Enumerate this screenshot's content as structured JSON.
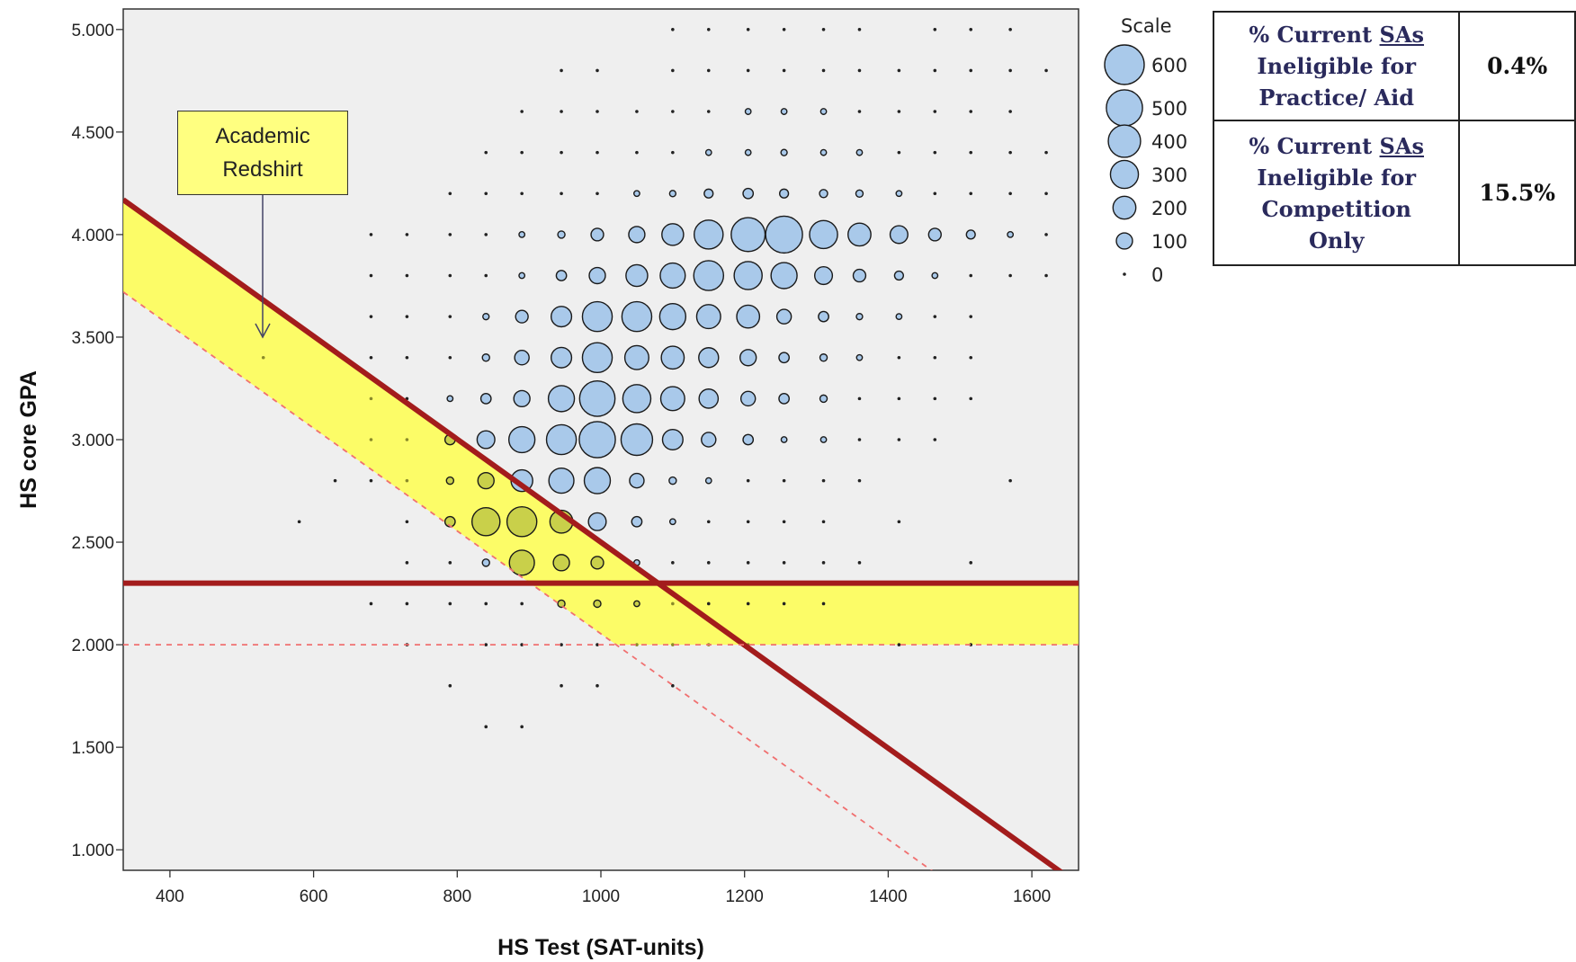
{
  "chart_data": {
    "type": "scatter",
    "subtype": "bubble",
    "title": "",
    "xlabel": "HS Test (SAT-units)",
    "ylabel": "HS core GPA",
    "xlim": [
      335,
      1665
    ],
    "ylim": [
      0.9,
      5.1
    ],
    "x_ticks": [
      "400",
      "600",
      "800",
      "1000",
      "1200",
      "1400",
      "1600"
    ],
    "y_ticks": [
      "1.000",
      "1.500",
      "2.000",
      "2.500",
      "3.000",
      "3.500",
      "4.000",
      "4.500",
      "5.000"
    ],
    "grid": false,
    "bubble_color": "#a9c9ea",
    "highlight_band_color": "#ffff40",
    "cut_line_color": "#a31c1c",
    "dashed_line_color": "#f07070",
    "legend": {
      "title": "Scale",
      "placement": "right",
      "labels": [
        "600",
        "500",
        "400",
        "300",
        "200",
        "100",
        "0"
      ],
      "values": [
        600,
        500,
        400,
        300,
        200,
        100,
        0
      ]
    },
    "x_bins": [
      580,
      630,
      680,
      730,
      790,
      840,
      890,
      945,
      995,
      1050,
      1100,
      1150,
      1205,
      1255,
      1310,
      1360,
      1415,
      1465,
      1515,
      1570,
      1620
    ],
    "rows": [
      {
        "gpa": 5.0,
        "sizes": [
          -1,
          -1,
          -1,
          -1,
          -1,
          -1,
          -1,
          -1,
          -1,
          -1,
          3,
          3,
          3,
          3,
          3,
          3,
          -1,
          3,
          3,
          3,
          -1
        ]
      },
      {
        "gpa": 4.8,
        "sizes": [
          -1,
          -1,
          -1,
          -1,
          -1,
          -1,
          -1,
          3,
          3,
          -1,
          3,
          3,
          5,
          3,
          5,
          3,
          3,
          3,
          3,
          3,
          3
        ]
      },
      {
        "gpa": 4.6,
        "sizes": [
          -1,
          -1,
          -1,
          -1,
          -1,
          -1,
          3,
          3,
          3,
          3,
          3,
          5,
          10,
          10,
          10,
          5,
          5,
          3,
          3,
          3,
          -1
        ]
      },
      {
        "gpa": 4.4,
        "sizes": [
          -1,
          -1,
          -1,
          -1,
          -1,
          3,
          3,
          3,
          3,
          5,
          5,
          10,
          10,
          15,
          10,
          10,
          5,
          5,
          3,
          3,
          3
        ]
      },
      {
        "gpa": 4.2,
        "sizes": [
          -1,
          -1,
          -1,
          -1,
          3,
          3,
          3,
          3,
          5,
          10,
          15,
          30,
          40,
          30,
          25,
          20,
          10,
          5,
          5,
          3,
          3
        ]
      },
      {
        "gpa": 4.0,
        "sizes": [
          -1,
          -1,
          3,
          3,
          3,
          3,
          10,
          20,
          60,
          100,
          180,
          320,
          440,
          520,
          300,
          200,
          120,
          60,
          30,
          10,
          5
        ]
      },
      {
        "gpa": 3.8,
        "sizes": [
          -1,
          -1,
          3,
          3,
          3,
          5,
          10,
          40,
          100,
          180,
          240,
          340,
          300,
          260,
          120,
          60,
          30,
          10,
          5,
          3,
          3
        ]
      },
      {
        "gpa": 3.6,
        "sizes": [
          -1,
          -1,
          3,
          3,
          3,
          15,
          60,
          160,
          340,
          340,
          260,
          220,
          200,
          80,
          40,
          15,
          10,
          5,
          3,
          -1,
          -1
        ]
      },
      {
        "gpa": 3.4,
        "sizes": [
          -1,
          -1,
          3,
          3,
          5,
          20,
          80,
          160,
          340,
          220,
          200,
          150,
          100,
          40,
          20,
          10,
          5,
          3,
          3,
          -1,
          -1
        ]
      },
      {
        "gpa": 3.2,
        "sizes": [
          -1,
          -1,
          3,
          5,
          10,
          40,
          100,
          260,
          480,
          300,
          220,
          140,
          80,
          40,
          20,
          5,
          5,
          3,
          3,
          -1,
          -1
        ]
      },
      {
        "gpa": 3.0,
        "sizes": [
          -1,
          -1,
          3,
          5,
          40,
          120,
          260,
          340,
          500,
          380,
          160,
          80,
          40,
          10,
          10,
          5,
          3,
          3,
          -1,
          -1,
          -1
        ]
      },
      {
        "gpa": 2.8,
        "sizes": [
          -1,
          3,
          3,
          3,
          20,
          100,
          180,
          240,
          260,
          80,
          20,
          10,
          5,
          3,
          3,
          3,
          -1,
          -1,
          -1,
          3,
          -1
        ]
      },
      {
        "gpa": 2.6,
        "sizes": [
          3,
          -1,
          -1,
          3,
          40,
          300,
          340,
          200,
          120,
          40,
          10,
          5,
          3,
          3,
          3,
          -1,
          3,
          -1,
          -1,
          -1,
          -1
        ]
      },
      {
        "gpa": 2.4,
        "sizes": [
          -1,
          -1,
          -1,
          3,
          5,
          20,
          240,
          100,
          60,
          10,
          5,
          3,
          3,
          3,
          3,
          3,
          -1,
          -1,
          3,
          -1,
          -1
        ]
      },
      {
        "gpa": 2.2,
        "sizes": [
          -1,
          -1,
          3,
          3,
          3,
          3,
          5,
          20,
          20,
          10,
          5,
          5,
          5,
          3,
          3,
          -1,
          -1,
          -1,
          -1,
          -1,
          -1
        ]
      },
      {
        "gpa": 2.0,
        "sizes": [
          -1,
          -1,
          -1,
          3,
          -1,
          3,
          3,
          3,
          3,
          3,
          3,
          3,
          3,
          -1,
          -1,
          -1,
          3,
          -1,
          3,
          -1,
          -1
        ]
      },
      {
        "gpa": 1.8,
        "sizes": [
          -1,
          -1,
          -1,
          -1,
          3,
          -1,
          -1,
          3,
          3,
          -1,
          3,
          -1,
          -1,
          -1,
          -1,
          -1,
          -1,
          -1,
          -1,
          -1,
          -1
        ]
      },
      {
        "gpa": 1.6,
        "sizes": [
          -1,
          -1,
          -1,
          -1,
          -1,
          3,
          3,
          -1,
          -1,
          -1,
          -1,
          -1,
          -1,
          -1,
          -1,
          -1,
          -1,
          -1,
          -1,
          -1,
          -1
        ]
      }
    ],
    "extra_points": [
      {
        "x": 530,
        "gpa": 3.4,
        "size": 3
      }
    ],
    "lines": {
      "solid_diagonal": [
        [
          335,
          4.17
        ],
        [
          1665,
          0.83
        ]
      ],
      "dashed_diagonal": [
        [
          335,
          3.72
        ],
        [
          1500,
          0.8
        ]
      ],
      "solid_horizontal_gpa": 2.3,
      "dashed_horizontal_gpa": 2.0
    },
    "annotation": {
      "line1": "Academic",
      "line2": "Redshirt",
      "points_to": {
        "x": 530,
        "gpa": 3.5
      }
    }
  },
  "table": {
    "row1": {
      "pre": "% Current ",
      "u": "SAs",
      "line2": "Ineligible for",
      "line3": "Practice/ Aid",
      "value": "0.4%"
    },
    "row2": {
      "pre": "% Current ",
      "u": "SAs",
      "line2": "Ineligible for",
      "line3": "Competition",
      "line4": "Only",
      "value": "15.5%"
    }
  }
}
